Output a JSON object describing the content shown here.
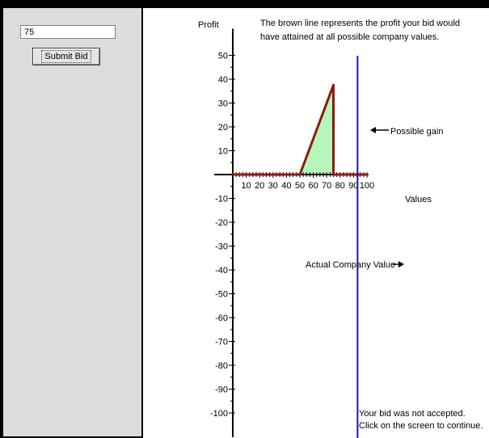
{
  "bid": {
    "input_value": "75",
    "submit_label": "Submit Bid"
  },
  "chart_data": {
    "type": "line",
    "ylabel": "Profit",
    "xlabel": "Values",
    "explanation_line1": "The brown line represents the profit your bid would",
    "explanation_line2": "have attained at all possible company values.",
    "x_ticks": [
      10,
      20,
      30,
      40,
      50,
      60,
      70,
      80,
      90,
      100
    ],
    "y_ticks": [
      50,
      40,
      30,
      20,
      10,
      -10,
      -20,
      -30,
      -40,
      -50,
      -60,
      -70,
      -80,
      -90,
      -100
    ],
    "xlim": [
      0,
      100
    ],
    "ylim": [
      -100,
      50
    ],
    "series": [
      {
        "points": [
          [
            0,
            0
          ],
          [
            50,
            0
          ],
          [
            75,
            37.5
          ],
          [
            75,
            0
          ],
          [
            100,
            0
          ]
        ],
        "color": "#8b1a10"
      }
    ],
    "shaded_region": {
      "points": [
        [
          50,
          0
        ],
        [
          75,
          37.5
        ],
        [
          75,
          0
        ]
      ],
      "color": "#b8f5b8"
    },
    "actual_company_value": 93,
    "marker_color": "#1a1aa0",
    "annotations": {
      "possible_gain": "Possible gain",
      "actual_company_value": "Actual Company Value"
    },
    "status_line1": "Your bid was not accepted.",
    "status_line2": "Click on the screen to continue."
  }
}
